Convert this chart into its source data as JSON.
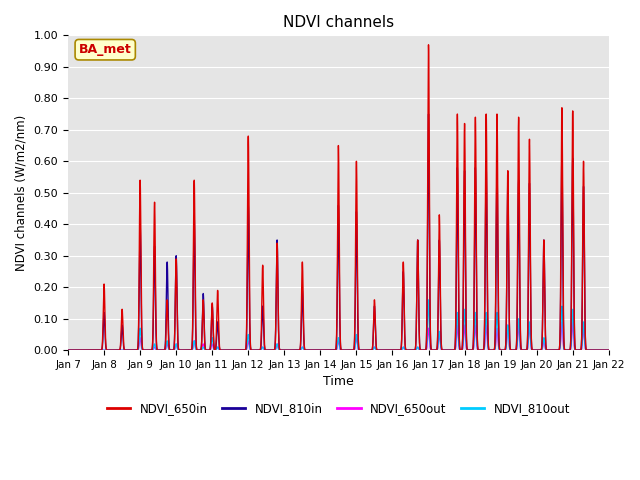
{
  "title": "NDVI channels",
  "xlabel": "Time",
  "ylabel": "NDVI channels (W/m2/nm)",
  "ylim": [
    0.0,
    1.0
  ],
  "yticks": [
    0.0,
    0.1,
    0.2,
    0.3,
    0.4,
    0.5,
    0.6,
    0.7,
    0.8,
    0.9,
    1.0
  ],
  "bg_color": "#e5e5e5",
  "annotation_text": "BA_met",
  "annotation_bg": "#ffffcc",
  "annotation_border": "#aa8800",
  "colors": {
    "NDVI_650in": "#dd0000",
    "NDVI_810in": "#1a0099",
    "NDVI_650out": "#ff00ff",
    "NDVI_810out": "#00ccff"
  },
  "legend_labels": [
    "NDVI_650in",
    "NDVI_810in",
    "NDVI_650out",
    "NDVI_810out"
  ],
  "x_tick_labels": [
    "Jan 7",
    "Jan 8",
    "Jan 9",
    "Jan 10",
    "Jan 11",
    "Jan 12",
    "Jan 13",
    "Jan 14",
    "Jan 15",
    "Jan 16",
    "Jan 17",
    "Jan 18",
    "Jan 19",
    "Jan 20",
    "Jan 21",
    "Jan 22"
  ],
  "spikes": [
    [
      1.0,
      0.21,
      0.12,
      0.0,
      0.0
    ],
    [
      1.5,
      0.13,
      0.08,
      0.0,
      0.0
    ],
    [
      2.0,
      0.54,
      0.4,
      0.04,
      0.07
    ],
    [
      2.4,
      0.47,
      0.33,
      0.01,
      0.02
    ],
    [
      2.75,
      0.16,
      0.28,
      0.02,
      0.03
    ],
    [
      3.0,
      0.29,
      0.3,
      0.02,
      0.02
    ],
    [
      3.5,
      0.54,
      0.42,
      0.03,
      0.03
    ],
    [
      3.75,
      0.16,
      0.18,
      0.02,
      0.01
    ],
    [
      4.0,
      0.15,
      0.14,
      0.02,
      0.04
    ],
    [
      4.15,
      0.19,
      0.09,
      0.01,
      0.01
    ],
    [
      5.0,
      0.68,
      0.46,
      0.03,
      0.05
    ],
    [
      5.4,
      0.27,
      0.14,
      0.01,
      0.01
    ],
    [
      5.8,
      0.34,
      0.35,
      0.02,
      0.02
    ],
    [
      6.5,
      0.28,
      0.19,
      0.01,
      0.01
    ],
    [
      7.5,
      0.65,
      0.46,
      0.03,
      0.04
    ],
    [
      8.0,
      0.6,
      0.44,
      0.04,
      0.05
    ],
    [
      8.5,
      0.16,
      0.14,
      0.01,
      0.01
    ],
    [
      9.3,
      0.28,
      0.25,
      0.01,
      0.01
    ],
    [
      9.7,
      0.35,
      0.35,
      0.01,
      0.01
    ],
    [
      10.0,
      0.97,
      0.75,
      0.07,
      0.16
    ],
    [
      10.3,
      0.43,
      0.35,
      0.05,
      0.06
    ],
    [
      10.8,
      0.75,
      0.58,
      0.08,
      0.12
    ],
    [
      11.0,
      0.72,
      0.57,
      0.08,
      0.13
    ],
    [
      11.3,
      0.74,
      0.58,
      0.08,
      0.12
    ],
    [
      11.6,
      0.75,
      0.58,
      0.08,
      0.12
    ],
    [
      11.9,
      0.75,
      0.57,
      0.07,
      0.12
    ],
    [
      12.2,
      0.57,
      0.53,
      0.08,
      0.08
    ],
    [
      12.5,
      0.74,
      0.54,
      0.08,
      0.1
    ],
    [
      12.8,
      0.67,
      0.53,
      0.08,
      0.09
    ],
    [
      13.2,
      0.35,
      0.35,
      0.03,
      0.04
    ],
    [
      13.7,
      0.77,
      0.61,
      0.09,
      0.14
    ],
    [
      14.0,
      0.76,
      0.61,
      0.09,
      0.13
    ],
    [
      14.3,
      0.6,
      0.52,
      0.07,
      0.09
    ]
  ]
}
